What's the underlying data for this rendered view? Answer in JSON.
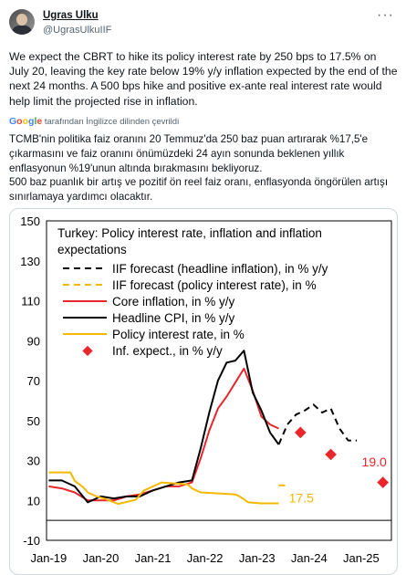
{
  "author": {
    "name": "Ugras Ulku",
    "handle": "@UgrasUlkuIIF",
    "avatar_icon": "profile-photo",
    "more_icon": "more-horizontal-icon"
  },
  "tweet": {
    "text": "We expect the CBRT to hike its policy interest rate by 250 bps to 17.5% on July 20, leaving the key rate below 19% y/y inflation expected by the end of the next 24 months. A 500 bps hike and positive ex-ante real interest rate would help limit the projected rise in inflation.",
    "translate_google": "Google",
    "translate_label": "tarafından İngilizce dilinden çevrildi",
    "translated_text_1": "TCMB'nin politika faiz oranını 20 Temmuz'da 250 baz puan artırarak %17,5'e çıkarmasını ve faiz oranını önümüzdeki 24 ayın sonunda beklenen yıllık enflasyonun %19'unun altında bırakmasını bekliyoruz.",
    "translated_text_2": "500 baz puanlık bir artış ve pozitif ön reel faiz oranı, enflasyonda öngörülen artışı sınırlamaya yardımcı olacaktır."
  },
  "chart_data": {
    "type": "line",
    "title": "Turkey: Policy interest rate, inflation and inflation expectations",
    "ylim": [
      -10,
      150
    ],
    "yticks": [
      -10,
      10,
      30,
      50,
      70,
      90,
      110,
      130,
      150
    ],
    "xticks": [
      "Jan-19",
      "Jan-20",
      "Jan-21",
      "Jan-22",
      "Jan-23",
      "Jan-24",
      "Jan-25"
    ],
    "grid": false,
    "legend_placement": "top-left",
    "series": [
      {
        "name": "IIF forecast (headline inflation), in % y/y",
        "style": "dashed",
        "color": "#000000",
        "x": [
          "2023-06",
          "2023-08",
          "2023-10",
          "2023-12",
          "2024-02",
          "2024-04",
          "2024-06",
          "2024-08",
          "2024-10",
          "2024-12"
        ],
        "y": [
          38,
          48,
          53,
          55,
          58,
          54,
          56,
          46,
          40,
          40
        ]
      },
      {
        "name": "IIF forecast (policy interest rate), in %",
        "style": "dashed",
        "color": "#f5b800",
        "x": [
          "2023-06",
          "2023-08"
        ],
        "y": [
          17.5,
          17.5
        ]
      },
      {
        "name": "Core inflation, in % y/y",
        "style": "solid",
        "color": "#e8262b",
        "x": [
          "2019-01",
          "2019-04",
          "2019-07",
          "2019-10",
          "2020-01",
          "2020-04",
          "2020-07",
          "2020-10",
          "2021-01",
          "2021-04",
          "2021-07",
          "2021-10",
          "2021-12",
          "2022-02",
          "2022-04",
          "2022-06",
          "2022-08",
          "2022-10",
          "2022-12",
          "2023-02",
          "2023-04",
          "2023-06"
        ],
        "y": [
          17,
          16,
          14,
          10,
          10,
          10,
          12,
          13,
          15,
          17,
          17,
          19,
          31,
          45,
          56,
          62,
          69,
          76,
          65,
          52,
          48,
          46
        ]
      },
      {
        "name": "Headline CPI, in % y/y",
        "style": "solid",
        "color": "#000000",
        "x": [
          "2019-01",
          "2019-04",
          "2019-07",
          "2019-10",
          "2020-01",
          "2020-04",
          "2020-07",
          "2020-10",
          "2021-01",
          "2021-04",
          "2021-07",
          "2021-10",
          "2021-12",
          "2022-02",
          "2022-04",
          "2022-06",
          "2022-08",
          "2022-10",
          "2022-12",
          "2023-02",
          "2023-04",
          "2023-06"
        ],
        "y": [
          20,
          20,
          17,
          9,
          12,
          11,
          12,
          12,
          15,
          17,
          19,
          20,
          36,
          54,
          70,
          79,
          80,
          85,
          64,
          55,
          44,
          38
        ]
      },
      {
        "name": "Policy interest rate, in %",
        "style": "solid",
        "color": "#f5b800",
        "x": [
          "2019-01",
          "2019-06",
          "2019-07",
          "2019-09",
          "2019-10",
          "2019-12",
          "2020-02",
          "2020-05",
          "2020-09",
          "2020-11",
          "2021-03",
          "2021-09",
          "2021-10",
          "2021-11",
          "2021-12",
          "2022-08",
          "2022-09",
          "2022-11",
          "2023-02",
          "2023-06"
        ],
        "y": [
          24,
          24,
          19.75,
          16.5,
          14,
          12,
          10.75,
          8.25,
          10.25,
          15,
          19,
          18,
          16,
          15,
          14,
          13,
          12,
          9,
          8.5,
          8.5
        ]
      },
      {
        "name": "Inf. expect., in % y/y",
        "style": "markers",
        "color": "#e8262b",
        "x": [
          "2023-11",
          "2024-06",
          "2025-06"
        ],
        "y": [
          44,
          33,
          19
        ]
      }
    ],
    "annotations": [
      {
        "text": "17.5",
        "color": "#f5b800"
      },
      {
        "text": "19.0",
        "color": "#e8262b"
      }
    ]
  }
}
